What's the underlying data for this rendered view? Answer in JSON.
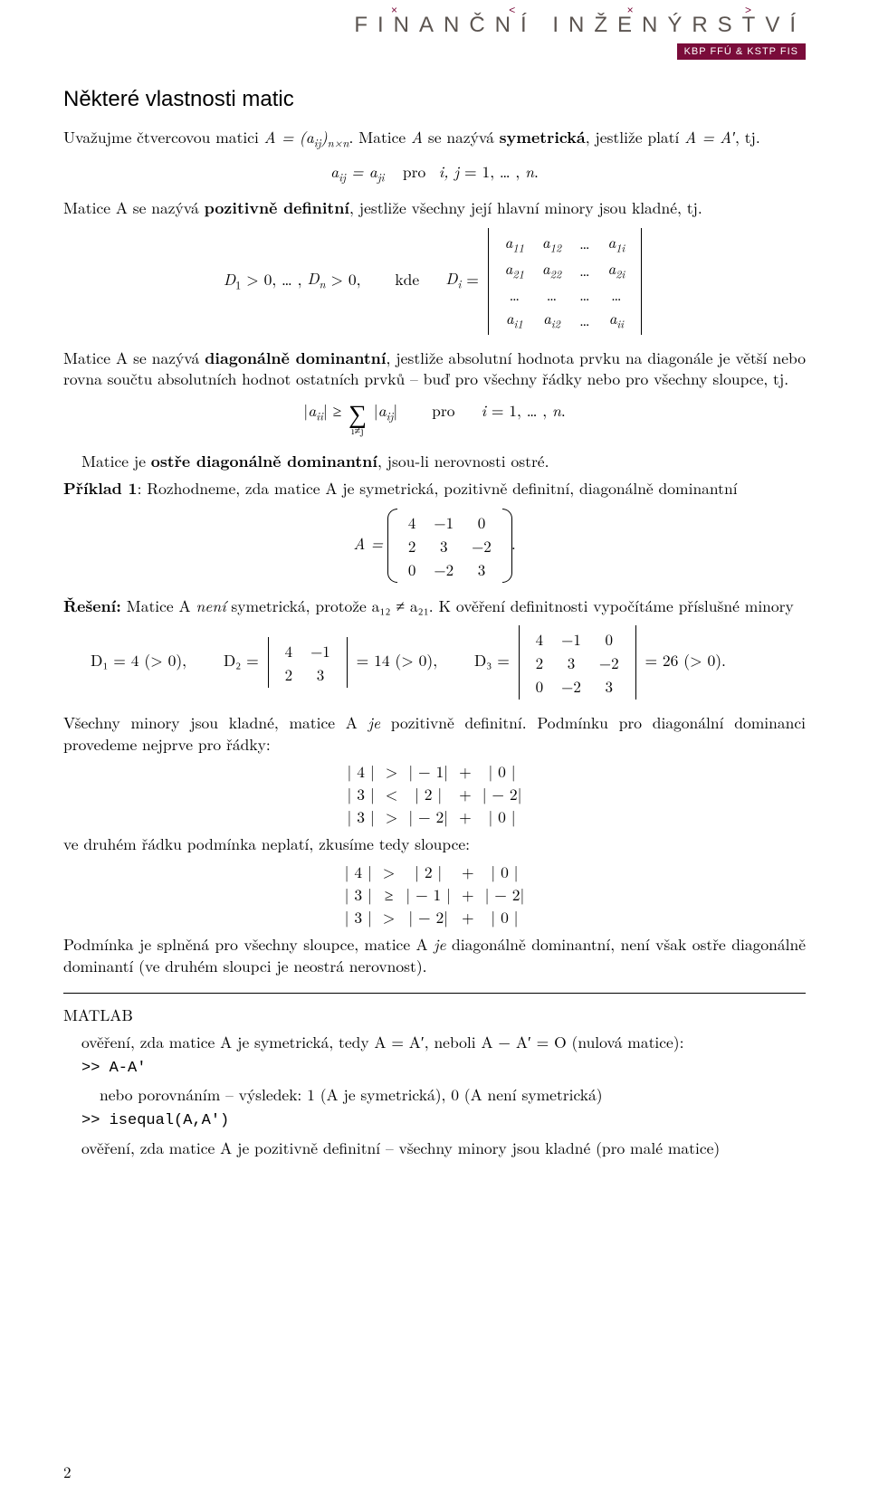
{
  "logo": {
    "hats": "×  <  ×  >",
    "word": "FINANČNÍ INŽENÝRSTVÍ",
    "bar": "KBP FFÚ & KSTP FIS"
  },
  "section_title": "Některé vlastnosti matic",
  "p_intro_a": "Uvažujme čtvercovou matici ",
  "p_intro_b": ". Matice ",
  "p_intro_c": " se nazývá ",
  "p_intro_sym": "symetrická",
  "p_intro_d": ", jestliže platí ",
  "p_intro_e": ", tj.",
  "eq1": "aᵢⱼ = aⱼᵢ   pro  i, j = 1, … , n.",
  "p_posdef": "Matice A se nazývá ",
  "p_posdef_b": "pozitivně definitní",
  "p_posdef_c": ", jestliže všechny její hlavní minory jsou kladné, tj.",
  "det_prefix": "D₁ > 0, … , Dₙ > 0,     kde    Dᵢ =",
  "det_matrix": {
    "rows": [
      [
        "a₁₁",
        "a₁₂",
        "…",
        "a₁ᵢ"
      ],
      [
        "a₂₁",
        "a₂₂",
        "…",
        "a₂ᵢ"
      ],
      [
        "…",
        "…",
        "…",
        "…"
      ],
      [
        "aᵢ₁",
        "aᵢ₂",
        "…",
        "aᵢᵢ"
      ]
    ]
  },
  "p_diag_a": "Matice A se nazývá ",
  "p_diag_b": "diagonálně dominantní",
  "p_diag_c": ", jestliže absolutní hodnota prvku na diagonále je větší nebo rovna součtu absolutních hodnot ostatních prvků – buď pro všechny řádky nebo pro všechny sloupce, tj.",
  "eq_diag_lhs": "|aᵢᵢ| ≥",
  "eq_diag_sum_below": "i≠j",
  "eq_diag_rhs": "|aᵢⱼ|     pro    i = 1, … , n.",
  "p_strict": "Matice je ",
  "p_strict_b": "ostře diagonálně dominantní",
  "p_strict_c": ", jsou-li nerovnosti ostré.",
  "ex_label": "Příklad 1",
  "ex_text": ": Rozhodneme, zda matice A je symetrická, pozitivně definitní, diagonálně dominantní",
  "A_matrix": {
    "prefix": "A =",
    "rows": [
      [
        "4",
        "−1",
        "0"
      ],
      [
        "2",
        "3",
        "−2"
      ],
      [
        "0",
        "−2",
        "3"
      ]
    ],
    "suffix": "."
  },
  "sol_label": "Řešení:",
  "sol_a": " Matice A ",
  "sol_neni": "není",
  "sol_b": " symetrická, protože a₁₂ ≠ a₂₁. K ověření definitnosti vypočítáme příslušné minory",
  "minors": {
    "d1": "D₁ = 4 (> 0),",
    "d2_pre": "D₂ =",
    "d2_mat": {
      "rows": [
        [
          "4",
          "−1"
        ],
        [
          "2",
          "3"
        ]
      ]
    },
    "d2_post": "= 14 (> 0),",
    "d3_pre": "D₃ =",
    "d3_mat": {
      "rows": [
        [
          "4",
          "−1",
          "0"
        ],
        [
          "2",
          "3",
          "−2"
        ],
        [
          "0",
          "−2",
          "3"
        ]
      ]
    },
    "d3_post": "= 26 (> 0)."
  },
  "p_allpos": "Všechny minory jsou kladné, matice A ",
  "p_allpos_je": "je",
  "p_allpos_b": " pozitivně definitní. Podmínku pro diagonální dominanci provedeme nejprve pro řádky:",
  "rows_check": [
    [
      "| 4 |",
      ">",
      "| − 1|",
      "+",
      "| 0 |"
    ],
    [
      "| 3 |",
      "<",
      "| 2 |",
      "+",
      "| − 2|"
    ],
    [
      "| 3 |",
      ">",
      "| − 2|",
      "+",
      "| 0 |"
    ]
  ],
  "p_row_fail": "ve druhém řádku podmínka neplatí, zkusíme tedy sloupce:",
  "cols_check": [
    [
      "| 4 |",
      ">",
      "| 2 |",
      "+",
      "| 0 |"
    ],
    [
      "| 3 |",
      "≥",
      "| − 1 |",
      "+",
      "| − 2|"
    ],
    [
      "| 3 |",
      ">",
      "| − 2|",
      "+",
      "| 0 |"
    ]
  ],
  "p_concl_a": "Podmínka je splněná pro všechny sloupce, matice A ",
  "p_concl_je": "je",
  "p_concl_b": " diagonálně dominantní, není však ostře diagonálně dominantí (ve druhém sloupci je neostrá nerovnost).",
  "matlab_title": "MATLAB",
  "matlab_p1": "ověření, zda matice A je symetrická, tedy A = A′, neboli A − A′ = O (nulová matice):",
  "matlab_c1": ">> A-A'",
  "matlab_p2": "nebo porovnáním – výsledek: 1 (A je symetrická), 0 (A není symetrická)",
  "matlab_c2": ">> isequal(A,A')",
  "matlab_p3": "ověření, zda matice A je pozitivně definitní – všechny minory jsou kladné (pro malé matice)",
  "pagenum": "2",
  "colors": {
    "brand": "#7a0c3a",
    "text": "#000000",
    "logo_text": "#5b5450",
    "bg": "#ffffff"
  }
}
